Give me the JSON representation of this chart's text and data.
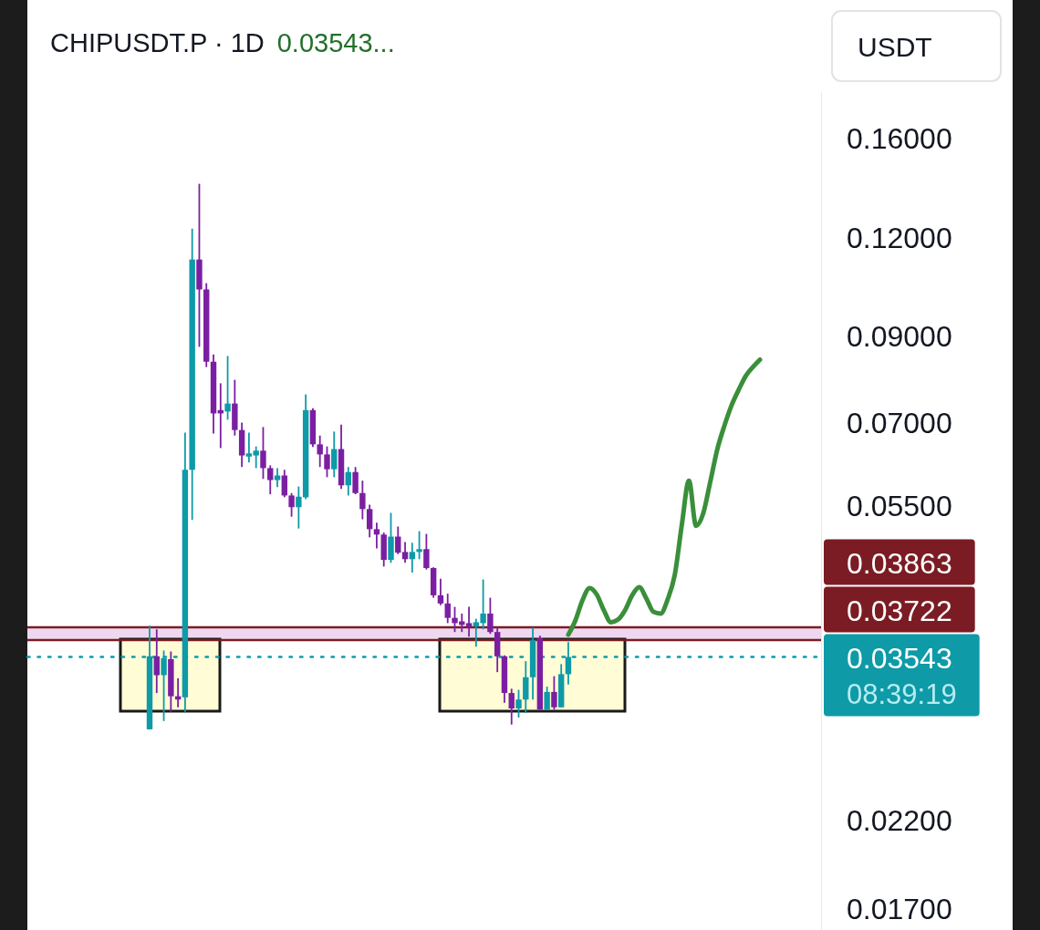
{
  "chart_data": {
    "type": "candlestick",
    "title": "CHIPUSDT.P · 1D",
    "subtitle": "0.03543...",
    "ylabel": "USDT",
    "annotations": [
      "08:39:19"
    ],
    "categories": [
      null,
      null,
      null,
      null,
      null,
      null,
      null,
      null,
      null,
      null,
      null,
      null,
      null,
      null,
      null,
      null,
      null,
      null,
      null,
      null,
      null,
      null,
      null,
      null,
      null,
      null,
      null,
      null,
      null,
      null,
      null,
      null,
      null,
      null,
      null,
      null,
      null,
      null,
      null,
      null,
      null,
      null,
      null,
      null,
      null,
      null,
      null,
      null,
      null,
      null,
      null,
      null,
      null,
      null,
      null,
      null,
      null,
      null,
      null,
      null,
      null,
      null,
      null,
      null,
      null,
      null,
      null,
      null,
      null,
      null,
      null,
      null,
      null,
      null,
      null,
      null,
      null,
      null,
      null,
      null,
      null,
      null,
      null,
      null,
      null,
      null,
      null
    ],
    "ohlc": [
      [
        0.0287,
        0.0388,
        0.0287,
        0.0355
      ],
      [
        0.0355,
        0.0384,
        0.0319,
        0.0336
      ],
      [
        0.0336,
        0.0361,
        0.0294,
        0.0353
      ],
      [
        0.0352,
        0.036,
        0.0302,
        0.0316
      ],
      [
        0.0316,
        0.0333,
        0.0306,
        0.0313
      ],
      [
        0.0315,
        0.0681,
        0.0302,
        0.0611
      ],
      [
        0.0611,
        0.1233,
        0.0528,
        0.1127
      ],
      [
        0.1127,
        0.1405,
        0.0874,
        0.1033
      ],
      [
        0.1033,
        0.1052,
        0.0824,
        0.0837
      ],
      [
        0.0837,
        0.0855,
        0.0679,
        0.072
      ],
      [
        0.0727,
        0.0786,
        0.0651,
        0.072
      ],
      [
        0.0724,
        0.0851,
        0.0707,
        0.0741
      ],
      [
        0.0741,
        0.0794,
        0.0675,
        0.0686
      ],
      [
        0.0686,
        0.0701,
        0.0616,
        0.0637
      ],
      [
        0.0635,
        0.0681,
        0.0624,
        0.0641
      ],
      [
        0.0637,
        0.0654,
        0.0614,
        0.0646
      ],
      [
        0.0646,
        0.0692,
        0.0595,
        0.0614
      ],
      [
        0.0614,
        0.0619,
        0.0569,
        0.0593
      ],
      [
        0.0593,
        0.0614,
        0.0581,
        0.0601
      ],
      [
        0.0601,
        0.0611,
        0.0564,
        0.0567
      ],
      [
        0.0567,
        0.0571,
        0.0533,
        0.0548
      ],
      [
        0.0548,
        0.0582,
        0.0515,
        0.0565
      ],
      [
        0.0564,
        0.0761,
        0.0561,
        0.0727
      ],
      [
        0.0727,
        0.0731,
        0.0653,
        0.0658
      ],
      [
        0.0658,
        0.0675,
        0.0616,
        0.0639
      ],
      [
        0.0639,
        0.0654,
        0.0598,
        0.0612
      ],
      [
        0.0612,
        0.0683,
        0.0598,
        0.0649
      ],
      [
        0.0649,
        0.0697,
        0.0578,
        0.0584
      ],
      [
        0.0584,
        0.0616,
        0.0567,
        0.0607
      ],
      [
        0.0607,
        0.0616,
        0.0569,
        0.0571
      ],
      [
        0.0571,
        0.0592,
        0.0529,
        0.0545
      ],
      [
        0.0545,
        0.0552,
        0.0502,
        0.0514
      ],
      [
        0.0514,
        0.0524,
        0.0486,
        0.0506
      ],
      [
        0.0506,
        0.0509,
        0.0461,
        0.047
      ],
      [
        0.047,
        0.0539,
        0.0466,
        0.0503
      ],
      [
        0.0503,
        0.0518,
        0.0478,
        0.048
      ],
      [
        0.0481,
        0.0495,
        0.0466,
        0.0471
      ],
      [
        0.0471,
        0.0494,
        0.0453,
        0.0481
      ],
      [
        0.0481,
        0.0511,
        0.0471,
        0.0485
      ],
      [
        0.0485,
        0.0507,
        0.0457,
        0.0459
      ],
      [
        0.0459,
        0.046,
        0.0421,
        0.0424
      ],
      [
        0.0424,
        0.0445,
        0.0412,
        0.0414
      ],
      [
        0.0414,
        0.0426,
        0.0391,
        0.0397
      ],
      [
        0.0397,
        0.041,
        0.0381,
        0.0391
      ],
      [
        0.0393,
        0.0402,
        0.0381,
        0.0389
      ],
      [
        0.0391,
        0.041,
        0.0376,
        0.0387
      ],
      [
        0.0387,
        0.0396,
        0.0365,
        0.0392
      ],
      [
        0.0391,
        0.0444,
        0.0384,
        0.0402
      ],
      [
        0.0402,
        0.0421,
        0.0379,
        0.0381
      ],
      [
        0.0381,
        0.0386,
        0.0339,
        0.0355
      ],
      [
        0.0355,
        0.0356,
        0.031,
        0.0319
      ],
      [
        0.0319,
        0.0323,
        0.0291,
        0.0305
      ],
      [
        0.0305,
        0.0322,
        0.0297,
        0.0313
      ],
      [
        0.0313,
        0.035,
        0.0301,
        0.0334
      ],
      [
        0.0334,
        0.0386,
        0.0313,
        0.0372
      ],
      [
        0.0374,
        0.0377,
        0.0304,
        0.0304
      ],
      [
        0.0304,
        0.0325,
        0.0304,
        0.032
      ],
      [
        0.032,
        0.0335,
        0.0304,
        0.0306
      ],
      [
        0.0306,
        0.0347,
        0.0306,
        0.0337
      ],
      [
        0.0337,
        0.037,
        0.0327,
        0.03543
      ],
      null,
      null,
      null,
      null,
      null,
      null,
      null,
      null,
      null,
      null,
      null,
      null,
      null,
      null,
      null,
      null,
      null,
      null,
      null,
      null,
      null,
      null,
      null,
      null,
      null,
      null,
      null
    ],
    "colors": [
      "#0e9aa7",
      "#7b1fa2",
      "#0e9aa7",
      "#7b1fa2",
      "#7b1fa2",
      "#0e9aa7",
      "#0e9aa7",
      "#7b1fa2",
      "#7b1fa2",
      "#7b1fa2",
      "#7b1fa2",
      "#0e9aa7",
      "#7b1fa2",
      "#7b1fa2",
      "#0e9aa7",
      "#0e9aa7",
      "#7b1fa2",
      "#7b1fa2",
      "#0e9aa7",
      "#7b1fa2",
      "#7b1fa2",
      "#0e9aa7",
      "#0e9aa7",
      "#7b1fa2",
      "#7b1fa2",
      "#7b1fa2",
      "#0e9aa7",
      "#7b1fa2",
      "#0e9aa7",
      "#7b1fa2",
      "#7b1fa2",
      "#7b1fa2",
      "#7b1fa2",
      "#7b1fa2",
      "#0e9aa7",
      "#7b1fa2",
      "#7b1fa2",
      "#0e9aa7",
      "#0e9aa7",
      "#7b1fa2",
      "#7b1fa2",
      "#7b1fa2",
      "#7b1fa2",
      "#7b1fa2",
      "#7b1fa2",
      "#7b1fa2",
      "#0e9aa7",
      "#0e9aa7",
      "#7b1fa2",
      "#7b1fa2",
      "#7b1fa2",
      "#7b1fa2",
      "#0e9aa7",
      "#0e9aa7",
      "#0e9aa7",
      "#7b1fa2",
      "#0e9aa7",
      "#7b1fa2",
      "#0e9aa7",
      "#0e9aa7",
      null,
      null,
      null,
      null,
      null,
      null,
      null,
      null,
      null,
      null,
      null,
      null,
      null,
      null,
      null,
      null,
      null,
      null,
      null,
      null,
      null,
      null,
      null,
      null,
      null,
      null,
      null
    ],
    "series": [
      {
        "type": "line",
        "color": "#3a8f3a",
        "values": [
          null,
          null,
          null,
          null,
          null,
          null,
          null,
          null,
          null,
          null,
          null,
          null,
          null,
          null,
          null,
          null,
          null,
          null,
          null,
          null,
          null,
          null,
          null,
          null,
          null,
          null,
          null,
          null,
          null,
          null,
          null,
          null,
          null,
          null,
          null,
          null,
          null,
          null,
          null,
          null,
          null,
          null,
          null,
          null,
          null,
          null,
          null,
          null,
          null,
          null,
          null,
          null,
          null,
          null,
          null,
          null,
          null,
          null,
          null,
          0.0378,
          0.0394,
          0.0418,
          0.0433,
          0.0425,
          0.0406,
          0.0392,
          0.0395,
          0.0406,
          0.0424,
          0.0434,
          0.042,
          0.0404,
          0.0402,
          0.0419,
          0.045,
          0.0521,
          0.0592,
          0.0519,
          0.0538,
          0.059,
          0.0649,
          0.0695,
          0.0737,
          0.0771,
          0.0803,
          0.0824,
          0.0842
        ]
      }
    ],
    "ylim": [
      0.016,
      0.184
    ],
    "yticks": [
      {
        "value": 0.16,
        "label": "0.16000"
      },
      {
        "value": 0.12,
        "label": "0.12000"
      },
      {
        "value": 0.09,
        "label": "0.09000"
      },
      {
        "value": 0.07,
        "label": "0.07000"
      },
      {
        "value": 0.055,
        "label": "0.05500"
      },
      {
        "value": 0.022,
        "label": "0.02200"
      },
      {
        "value": 0.017,
        "label": "0.01700"
      }
    ],
    "log": "y",
    "tick_labels": "y",
    "ref_lines": [
      {
        "axis": "y",
        "value": 0.03863,
        "label": "0.03863",
        "color": "#7b1c24"
      },
      {
        "axis": "y",
        "value": 0.03722,
        "label": "0.03722",
        "color": "#7b1c24"
      },
      {
        "axis": "y",
        "value": 0.03543,
        "label": "0.03543",
        "color": "#0e9aa7",
        "line_style": "dotted"
      }
    ],
    "bands": [
      {
        "axis": "y",
        "from": 0.03722,
        "to": 0.03863,
        "color": "#efd8ef"
      }
    ]
  }
}
